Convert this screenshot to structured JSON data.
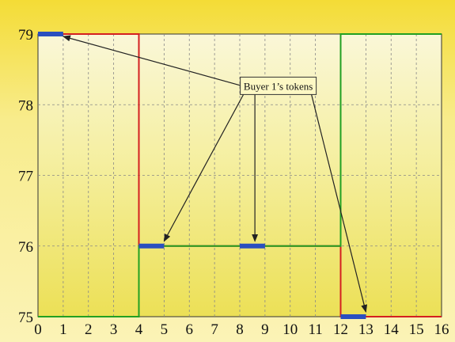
{
  "chart_data": {
    "type": "line",
    "title": "",
    "xlabel": "",
    "ylabel": "",
    "xlim": [
      0,
      16
    ],
    "ylim": [
      75,
      79
    ],
    "x_ticks": [
      "0",
      "1",
      "2",
      "3",
      "4",
      "5",
      "6",
      "7",
      "8",
      "9",
      "10",
      "11",
      "12",
      "13",
      "14",
      "15",
      "16"
    ],
    "y_ticks": [
      "75",
      "76",
      "77",
      "78",
      "79"
    ],
    "grid": true,
    "series": [
      {
        "color": "#d42020",
        "x": [
          0,
          4,
          4,
          12,
          12,
          16
        ],
        "y": [
          79,
          79,
          76,
          76,
          75,
          75
        ]
      },
      {
        "color": "#22a022",
        "x": [
          0,
          4,
          4,
          12,
          12,
          16
        ],
        "y": [
          75,
          75,
          76,
          76,
          79,
          79
        ]
      }
    ],
    "tokens": {
      "color": "#2a4fbf",
      "segments": [
        {
          "x": [
            0,
            1
          ],
          "y": 79
        },
        {
          "x": [
            4,
            5
          ],
          "y": 76
        },
        {
          "x": [
            8,
            9
          ],
          "y": 76
        },
        {
          "x": [
            12,
            13
          ],
          "y": 75
        }
      ]
    },
    "annotation": {
      "text": "Buyer 1’s tokens",
      "at": [
        11,
        78.2
      ],
      "targets": [
        [
          1,
          79
        ],
        [
          5,
          76
        ],
        [
          8.6,
          76
        ],
        [
          13,
          75
        ]
      ]
    }
  }
}
